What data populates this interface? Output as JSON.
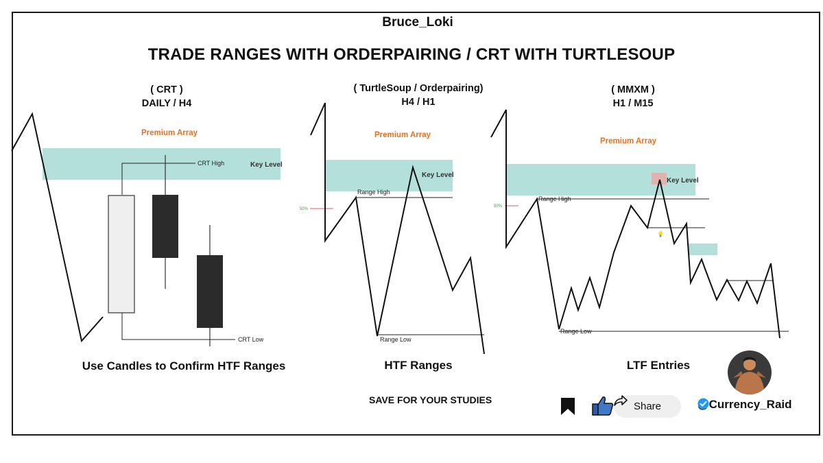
{
  "author": "Bruce_Loki",
  "title": "TRADE RANGES WITH ORDERPAIRING / CRT WITH TURTLESOUP",
  "panels": [
    {
      "heading_line1": "( CRT )",
      "heading_line2": "DAILY / H4",
      "premium_label": "Premium Array",
      "key_level_label": "Key Level",
      "high_label": "CRT High",
      "low_label": "CRT Low",
      "caption": "Use Candles to Confirm HTF Ranges"
    },
    {
      "heading_line1": "( TurtleSoup  / Orderpairing)",
      "heading_line2": "H4 / H1",
      "premium_label": "Premium Array",
      "key_level_label": "Key Level",
      "high_label": "Range High",
      "low_label": "Range Low",
      "fifty_label": "50%",
      "caption": "HTF Ranges"
    },
    {
      "heading_line1": "( MMXM )",
      "heading_line2": "H1 / M15",
      "premium_label": "Premium Array",
      "key_level_label": "Key Level",
      "high_label": "Range High",
      "low_label": "Range Low",
      "fifty_label": "50%",
      "caption": "LTF Entries"
    }
  ],
  "save_text": "SAVE FOR YOUR STUDIES",
  "social": {
    "share_label": "Share",
    "handle": "@Currency_Raid"
  },
  "icons": [
    "bookmark-icon",
    "thumbs-up-icon",
    "share-arrow-icon",
    "verified-badge-icon",
    "avatar"
  ],
  "colors": {
    "key_level_zone": "#b3e0da",
    "premium_text": "#e8701e",
    "fifty_text": "#35a845",
    "fifty_line": "#e05a6a",
    "bearish_candle": "#2b2b2b",
    "bullish_candle": "#efefef",
    "verified": "#1d9bf0"
  }
}
